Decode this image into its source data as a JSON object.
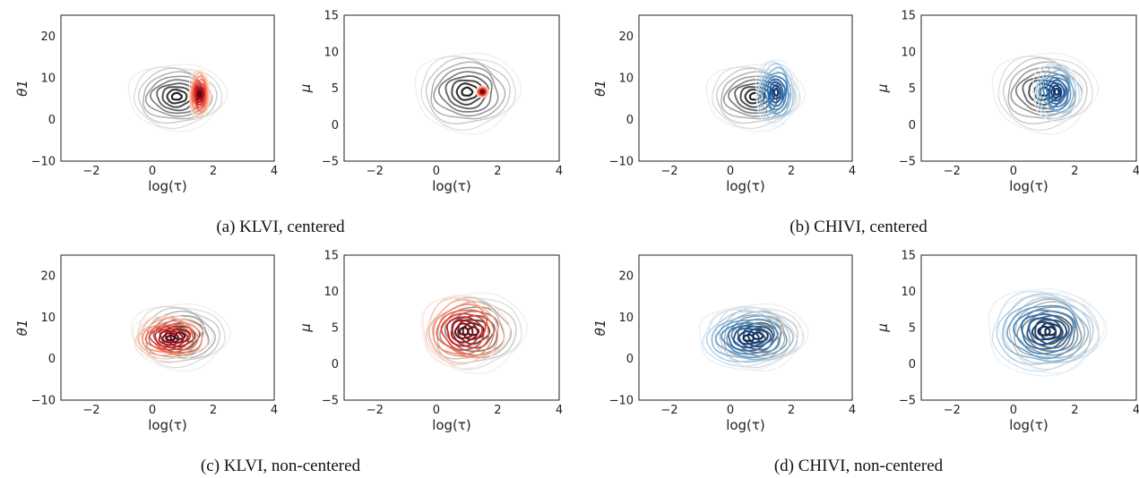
{
  "captions": {
    "a": "(a) KLVI, centered",
    "b": "(b) CHIVI, centered",
    "c": "(c) KLVI, non-centered",
    "d": "(d) CHIVI, non-centered"
  },
  "colors": {
    "reference": "#444444",
    "klvi": "#cb1d1e",
    "chivi": "#2166ac",
    "axis": "#222222"
  },
  "chart_data": [
    {
      "type": "contour",
      "panel": "a-left",
      "xlabel": "log(τ)",
      "ylabel": "θ1",
      "xlim": [
        -3,
        4
      ],
      "ylim": [
        -10,
        25
      ],
      "xticks": [
        -2,
        0,
        2,
        4
      ],
      "yticks": [
        -10,
        0,
        10,
        20
      ],
      "grid": false,
      "series": [
        {
          "colormap": "greys",
          "center": [
            0.8,
            5.5
          ],
          "spread": [
            1.6,
            8.0
          ]
        },
        {
          "colormap": "reds",
          "center": [
            1.55,
            6.0
          ],
          "spread": [
            0.35,
            6.0
          ]
        }
      ]
    },
    {
      "type": "contour",
      "panel": "a-right",
      "xlabel": "log(τ)",
      "ylabel": "μ",
      "xlim": [
        -3,
        4
      ],
      "ylim": [
        -5,
        15
      ],
      "xticks": [
        -2,
        0,
        2,
        4
      ],
      "yticks": [
        -5,
        0,
        5,
        10,
        15
      ],
      "grid": false,
      "series": [
        {
          "colormap": "greys",
          "center": [
            1.0,
            4.5
          ],
          "spread": [
            1.7,
            5.5
          ]
        },
        {
          "colormap": "reds",
          "center": [
            1.5,
            4.5
          ],
          "spread": [
            0.2,
            0.8
          ]
        }
      ]
    },
    {
      "type": "contour",
      "panel": "b-left",
      "xlabel": "log(τ)",
      "ylabel": "θ1",
      "xlim": [
        -3,
        4
      ],
      "ylim": [
        -10,
        25
      ],
      "xticks": [
        -2,
        0,
        2,
        4
      ],
      "yticks": [
        -10,
        0,
        10,
        20
      ],
      "grid": false,
      "series": [
        {
          "colormap": "greys",
          "center": [
            0.8,
            5.5
          ],
          "spread": [
            1.6,
            8.0
          ]
        },
        {
          "colormap": "blues",
          "center": [
            1.5,
            6.5
          ],
          "spread": [
            0.7,
            8.0
          ]
        }
      ]
    },
    {
      "type": "contour",
      "panel": "b-right",
      "xlabel": "log(τ)",
      "ylabel": "μ",
      "xlim": [
        -3,
        4
      ],
      "ylim": [
        -5,
        15
      ],
      "xticks": [
        -2,
        0,
        2,
        4
      ],
      "yticks": [
        -5,
        0,
        5,
        10,
        15
      ],
      "grid": false,
      "series": [
        {
          "colormap": "greys",
          "center": [
            1.0,
            4.5
          ],
          "spread": [
            1.7,
            5.5
          ]
        },
        {
          "colormap": "blues",
          "center": [
            1.4,
            4.5
          ],
          "spread": [
            0.8,
            4.0
          ]
        }
      ]
    },
    {
      "type": "contour",
      "panel": "c-left",
      "xlabel": "log(τ)",
      "ylabel": "θ1",
      "xlim": [
        -3,
        4
      ],
      "ylim": [
        -10,
        25
      ],
      "xticks": [
        -2,
        0,
        2,
        4
      ],
      "yticks": [
        -10,
        0,
        10,
        20
      ],
      "grid": false,
      "series": [
        {
          "colormap": "greys",
          "center": [
            0.9,
            5.5
          ],
          "spread": [
            1.6,
            8.0
          ]
        },
        {
          "colormap": "reds",
          "center": [
            0.6,
            5.0
          ],
          "spread": [
            1.3,
            5.5
          ]
        }
      ]
    },
    {
      "type": "contour",
      "panel": "c-right",
      "xlabel": "log(τ)",
      "ylabel": "μ",
      "xlim": [
        -3,
        4
      ],
      "ylim": [
        -5,
        15
      ],
      "xticks": [
        -2,
        0,
        2,
        4
      ],
      "yticks": [
        -5,
        0,
        5,
        10,
        15
      ],
      "grid": false,
      "series": [
        {
          "colormap": "greys",
          "center": [
            1.2,
            4.5
          ],
          "spread": [
            1.7,
            5.5
          ]
        },
        {
          "colormap": "reds",
          "center": [
            0.9,
            4.5
          ],
          "spread": [
            1.4,
            5.0
          ]
        }
      ]
    },
    {
      "type": "contour",
      "panel": "d-left",
      "xlabel": "log(τ)",
      "ylabel": "θ1",
      "xlim": [
        -3,
        4
      ],
      "ylim": [
        -10,
        25
      ],
      "xticks": [
        -2,
        0,
        2,
        4
      ],
      "yticks": [
        -10,
        0,
        10,
        20
      ],
      "grid": false,
      "series": [
        {
          "colormap": "greys",
          "center": [
            0.9,
            5.5
          ],
          "spread": [
            1.6,
            8.0
          ]
        },
        {
          "colormap": "blues",
          "center": [
            0.6,
            5.0
          ],
          "spread": [
            1.7,
            7.5
          ]
        }
      ]
    },
    {
      "type": "contour",
      "panel": "d-right",
      "xlabel": "log(τ)",
      "ylabel": "μ",
      "xlim": [
        -3,
        4
      ],
      "ylim": [
        -5,
        15
      ],
      "xticks": [
        -2,
        0,
        2,
        4
      ],
      "yticks": [
        -5,
        0,
        5,
        10,
        15
      ],
      "grid": false,
      "series": [
        {
          "colormap": "greys",
          "center": [
            1.2,
            4.5
          ],
          "spread": [
            1.7,
            5.5
          ]
        },
        {
          "colormap": "blues",
          "center": [
            1.0,
            4.5
          ],
          "spread": [
            1.9,
            6.0
          ]
        }
      ]
    }
  ]
}
